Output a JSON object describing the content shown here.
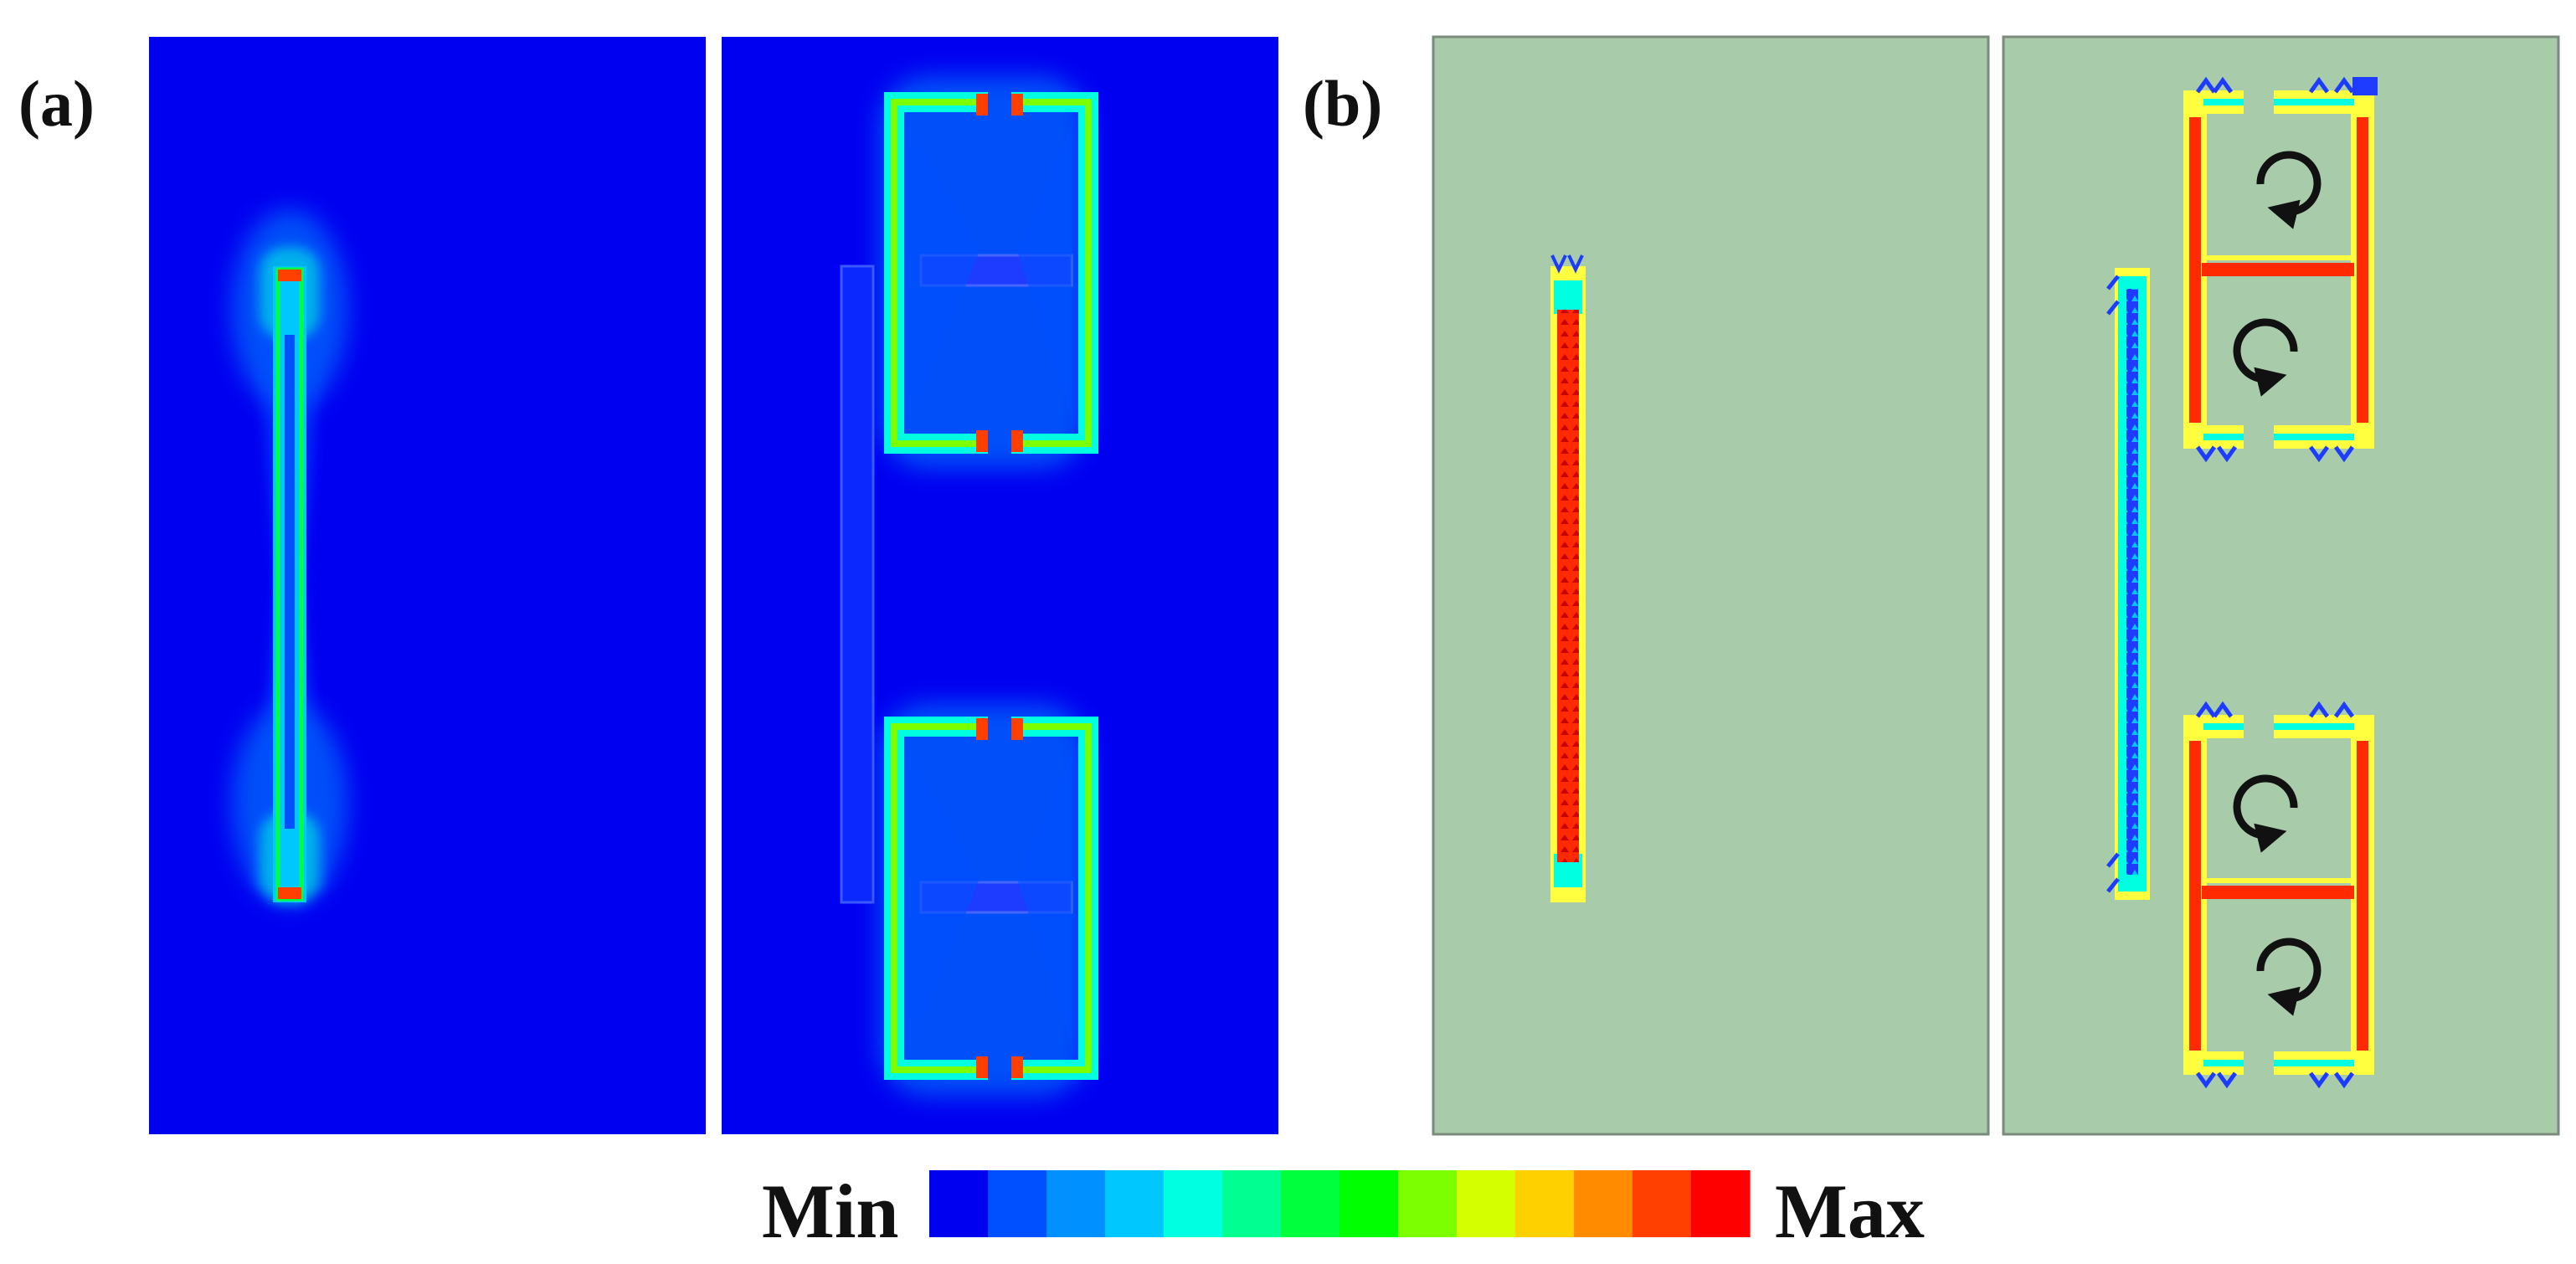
{
  "labels": {
    "panel_a": "(a)",
    "panel_b": "(b)"
  },
  "colorbar": {
    "min_label": "Min",
    "max_label": "Max",
    "colors": [
      "#0000f0",
      "#0050ff",
      "#0090ff",
      "#00c8ff",
      "#00ffe0",
      "#00ff90",
      "#00ff3c",
      "#00ff00",
      "#7cff00",
      "#d4ff00",
      "#ffd000",
      "#ff8c00",
      "#ff4000",
      "#ff0000"
    ]
  },
  "colors": {
    "field_background": "#0000f0",
    "current_background": "#a8ccaa",
    "panel_border": "#7a8a7c"
  },
  "icons": [
    "circulation-arrow-icon"
  ]
}
